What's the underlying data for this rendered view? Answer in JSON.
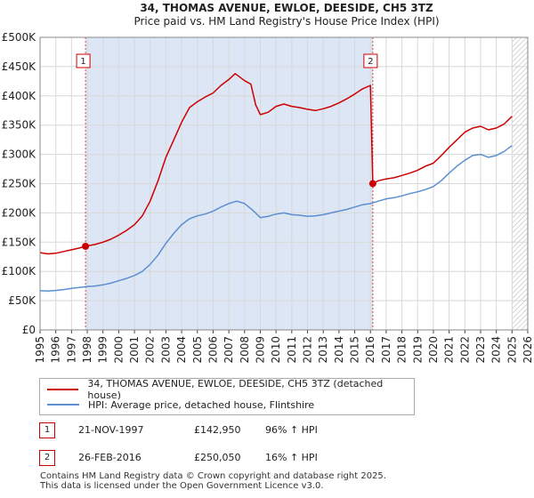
{
  "chart_data": {
    "type": "line",
    "title": "34, THOMAS AVENUE, EWLOE, DEESIDE, CH5 3TZ",
    "subtitle": "Price paid vs. HM Land Registry's House Price Index (HPI)",
    "xlabel": "",
    "ylabel": "",
    "xlim": [
      1995,
      2026
    ],
    "ylim": [
      0,
      500000
    ],
    "x_ticks": [
      "1995",
      "1996",
      "1997",
      "1998",
      "1999",
      "2000",
      "2001",
      "2002",
      "2003",
      "2004",
      "2005",
      "2006",
      "2007",
      "2008",
      "2009",
      "2010",
      "2011",
      "2012",
      "2013",
      "2014",
      "2015",
      "2016",
      "2017",
      "2018",
      "2019",
      "2020",
      "2021",
      "2022",
      "2023",
      "2024",
      "2025",
      "2026"
    ],
    "y_ticks": [
      {
        "value": 0,
        "label": "£0"
      },
      {
        "value": 50000,
        "label": "£50K"
      },
      {
        "value": 100000,
        "label": "£100K"
      },
      {
        "value": 150000,
        "label": "£150K"
      },
      {
        "value": 200000,
        "label": "£200K"
      },
      {
        "value": 250000,
        "label": "£250K"
      },
      {
        "value": 300000,
        "label": "£300K"
      },
      {
        "value": 350000,
        "label": "£350K"
      },
      {
        "value": 400000,
        "label": "£400K"
      },
      {
        "value": 450000,
        "label": "£450K"
      },
      {
        "value": 500000,
        "label": "£500K"
      }
    ],
    "grid": true,
    "shaded_regions": [
      {
        "from": 1997.89,
        "to": 2016.15,
        "color": "#dde6f5"
      },
      {
        "from": 2025.0,
        "to": 2026.0,
        "hatched": true
      }
    ],
    "series": [
      {
        "name": "34, THOMAS AVENUE, EWLOE, DEESIDE, CH5 3TZ (detached house)",
        "color": "#cc0000",
        "points": [
          [
            1995.0,
            132000
          ],
          [
            1995.5,
            130000
          ],
          [
            1996.0,
            131000
          ],
          [
            1996.5,
            134000
          ],
          [
            1997.0,
            137000
          ],
          [
            1997.5,
            140000
          ],
          [
            1997.89,
            142950
          ],
          [
            1998.5,
            146000
          ],
          [
            1999.0,
            150000
          ],
          [
            1999.5,
            155000
          ],
          [
            2000.0,
            162000
          ],
          [
            2000.5,
            170000
          ],
          [
            2001.0,
            180000
          ],
          [
            2001.5,
            195000
          ],
          [
            2002.0,
            220000
          ],
          [
            2002.5,
            255000
          ],
          [
            2003.0,
            295000
          ],
          [
            2003.5,
            325000
          ],
          [
            2004.0,
            355000
          ],
          [
            2004.5,
            380000
          ],
          [
            2005.0,
            390000
          ],
          [
            2005.5,
            398000
          ],
          [
            2006.0,
            405000
          ],
          [
            2006.5,
            418000
          ],
          [
            2007.0,
            428000
          ],
          [
            2007.4,
            438000
          ],
          [
            2007.7,
            432000
          ],
          [
            2008.0,
            426000
          ],
          [
            2008.4,
            420000
          ],
          [
            2008.7,
            385000
          ],
          [
            2009.0,
            368000
          ],
          [
            2009.5,
            372000
          ],
          [
            2010.0,
            382000
          ],
          [
            2010.5,
            386000
          ],
          [
            2011.0,
            382000
          ],
          [
            2011.5,
            380000
          ],
          [
            2012.0,
            377000
          ],
          [
            2012.5,
            375000
          ],
          [
            2013.0,
            378000
          ],
          [
            2013.5,
            382000
          ],
          [
            2014.0,
            388000
          ],
          [
            2014.5,
            395000
          ],
          [
            2015.0,
            403000
          ],
          [
            2015.5,
            412000
          ],
          [
            2016.0,
            418000
          ],
          [
            2016.15,
            250050
          ],
          [
            2016.5,
            255000
          ],
          [
            2017.0,
            258000
          ],
          [
            2017.5,
            260000
          ],
          [
            2018.0,
            264000
          ],
          [
            2018.5,
            268000
          ],
          [
            2019.0,
            273000
          ],
          [
            2019.5,
            280000
          ],
          [
            2020.0,
            285000
          ],
          [
            2020.5,
            298000
          ],
          [
            2021.0,
            312000
          ],
          [
            2021.5,
            325000
          ],
          [
            2022.0,
            338000
          ],
          [
            2022.5,
            345000
          ],
          [
            2023.0,
            348000
          ],
          [
            2023.5,
            342000
          ],
          [
            2024.0,
            345000
          ],
          [
            2024.5,
            352000
          ],
          [
            2025.0,
            365000
          ]
        ]
      },
      {
        "name": "HPI: Average price, detached house, Flintshire",
        "color": "#5b8fd0",
        "points": [
          [
            1995.0,
            67000
          ],
          [
            1995.5,
            66500
          ],
          [
            1996.0,
            67500
          ],
          [
            1996.5,
            69000
          ],
          [
            1997.0,
            71000
          ],
          [
            1997.5,
            72500
          ],
          [
            1998.0,
            74000
          ],
          [
            1998.5,
            75000
          ],
          [
            1999.0,
            77000
          ],
          [
            1999.5,
            80000
          ],
          [
            2000.0,
            84000
          ],
          [
            2000.5,
            88000
          ],
          [
            2001.0,
            93000
          ],
          [
            2001.5,
            100000
          ],
          [
            2002.0,
            112000
          ],
          [
            2002.5,
            128000
          ],
          [
            2003.0,
            148000
          ],
          [
            2003.5,
            165000
          ],
          [
            2004.0,
            180000
          ],
          [
            2004.5,
            190000
          ],
          [
            2005.0,
            195000
          ],
          [
            2005.5,
            198000
          ],
          [
            2006.0,
            203000
          ],
          [
            2006.5,
            210000
          ],
          [
            2007.0,
            216000
          ],
          [
            2007.5,
            220000
          ],
          [
            2008.0,
            216000
          ],
          [
            2008.5,
            205000
          ],
          [
            2009.0,
            192000
          ],
          [
            2009.5,
            194000
          ],
          [
            2010.0,
            198000
          ],
          [
            2010.5,
            200000
          ],
          [
            2011.0,
            197000
          ],
          [
            2011.5,
            196000
          ],
          [
            2012.0,
            194000
          ],
          [
            2012.5,
            195000
          ],
          [
            2013.0,
            197000
          ],
          [
            2013.5,
            200000
          ],
          [
            2014.0,
            203000
          ],
          [
            2014.5,
            206000
          ],
          [
            2015.0,
            210000
          ],
          [
            2015.5,
            214000
          ],
          [
            2016.0,
            216000
          ],
          [
            2016.5,
            220000
          ],
          [
            2017.0,
            224000
          ],
          [
            2017.5,
            226000
          ],
          [
            2018.0,
            229000
          ],
          [
            2018.5,
            233000
          ],
          [
            2019.0,
            236000
          ],
          [
            2019.5,
            240000
          ],
          [
            2020.0,
            245000
          ],
          [
            2020.5,
            255000
          ],
          [
            2021.0,
            268000
          ],
          [
            2021.5,
            280000
          ],
          [
            2022.0,
            290000
          ],
          [
            2022.5,
            298000
          ],
          [
            2023.0,
            300000
          ],
          [
            2023.5,
            295000
          ],
          [
            2024.0,
            298000
          ],
          [
            2024.5,
            305000
          ],
          [
            2025.0,
            315000
          ]
        ]
      }
    ],
    "markers": [
      {
        "label": "1",
        "x": 1997.89,
        "y": 142950
      },
      {
        "label": "2",
        "x": 2016.15,
        "y": 250050
      }
    ]
  },
  "legend": {
    "property_label": "34, THOMAS AVENUE, EWLOE, DEESIDE, CH5 3TZ (detached house)",
    "hpi_label": "HPI: Average price, detached house, Flintshire",
    "property_color": "#cc0000",
    "hpi_color": "#5b8fd0"
  },
  "sales": [
    {
      "num": "1",
      "date": "21-NOV-1997",
      "price": "£142,950",
      "hpi": "96% ↑ HPI"
    },
    {
      "num": "2",
      "date": "26-FEB-2016",
      "price": "£250,050",
      "hpi": "16% ↑ HPI"
    }
  ],
  "footer": {
    "line1": "Contains HM Land Registry data © Crown copyright and database right 2025.",
    "line2": "This data is licensed under the Open Government Licence v3.0."
  }
}
